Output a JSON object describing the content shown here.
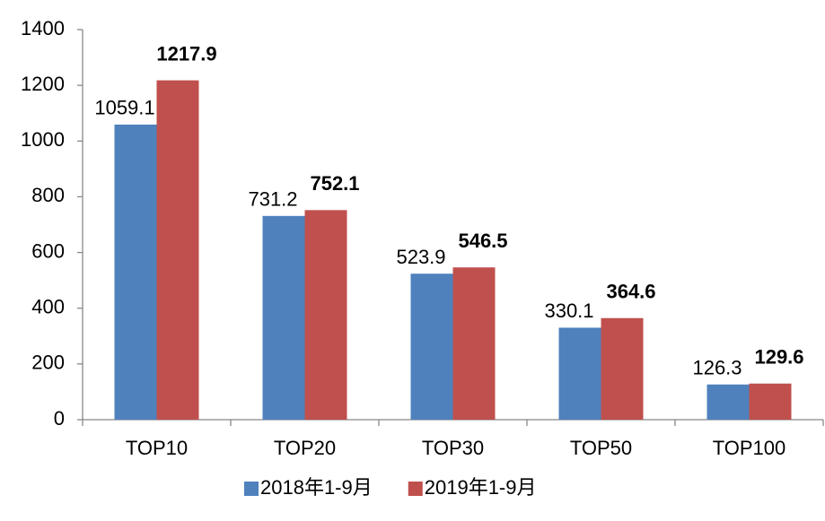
{
  "chart_data": {
    "type": "bar",
    "categories": [
      "TOP10",
      "TOP20",
      "TOP30",
      "TOP50",
      "TOP100"
    ],
    "series": [
      {
        "name": "2018年1-9月",
        "color": "#4f81bd",
        "values": [
          1059.1,
          731.2,
          523.9,
          330.1,
          126.3
        ]
      },
      {
        "name": "2019年1-9月",
        "color": "#c0504d",
        "values": [
          1217.9,
          752.1,
          546.5,
          364.6,
          129.6
        ]
      }
    ],
    "ylim": [
      0,
      1400
    ],
    "yticks": [
      0,
      200,
      400,
      600,
      800,
      1000,
      1200,
      1400
    ],
    "grid": false,
    "legend": "bottom"
  }
}
